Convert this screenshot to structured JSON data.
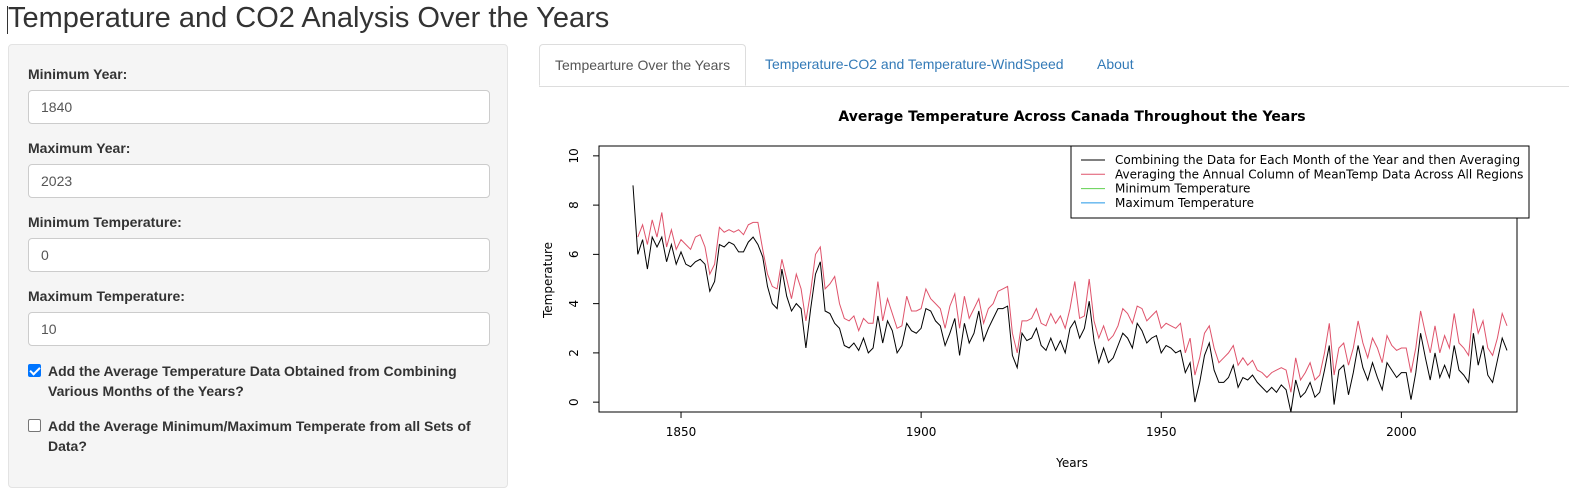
{
  "page": {
    "title": "Temperature and CO2 Analysis Over the Years"
  },
  "sidebar": {
    "min_year": {
      "label": "Minimum Year:",
      "value": "1840"
    },
    "max_year": {
      "label": "Maximum Year:",
      "value": "2023"
    },
    "min_temp": {
      "label": "Minimum Temperature:",
      "value": "0"
    },
    "max_temp": {
      "label": "Maximum Temperature:",
      "value": "10"
    },
    "checkbox_avg": {
      "label": "Add the Average Temperature Data Obtained from Combining Various Months of the Years?",
      "checked": true
    },
    "checkbox_minmax": {
      "label": "Add the Average Minimum/Maximum Temperate from all Sets of Data?",
      "checked": false
    }
  },
  "tabs": [
    {
      "label": "Tempearture Over the Years",
      "active": true
    },
    {
      "label": "Temperature-CO2 and Temperature-WindSpeed",
      "active": false
    },
    {
      "label": "About",
      "active": false
    }
  ],
  "colors": {
    "accent": "#337ab7",
    "checkbox": "#0075ff",
    "series_black": "#000000",
    "series_red": "#DF536B",
    "series_green": "#61D04F",
    "series_blue": "#2297E6"
  },
  "chart_data": {
    "type": "line",
    "title": "Average Temperature Across Canada Throughout the Years",
    "xlabel": "Years",
    "ylabel": "Temperature",
    "xlim": [
      1840,
      2017
    ],
    "ylim": [
      0,
      10
    ],
    "x_ticks": [
      1850,
      1900,
      1950,
      2000
    ],
    "y_ticks": [
      0,
      2,
      4,
      6,
      8,
      10
    ],
    "legend_position": "top-right",
    "legend": [
      {
        "label": "Combining the Data for Each Month of the Year and then Averaging",
        "color": "#000000"
      },
      {
        "label": "Averaging the Annual Column of MeanTemp Data Across All Regions",
        "color": "#DF536B"
      },
      {
        "label": "Minimum Temperature",
        "color": "#61D04F"
      },
      {
        "label": "Maximum Temperature",
        "color": "#2297E6"
      }
    ],
    "series": [
      {
        "name": "Combining the Data for Each Month of the Year and then Averaging",
        "color": "#000000",
        "x_start": 1840,
        "values": [
          8.8,
          6.0,
          6.6,
          5.4,
          6.7,
          6.3,
          6.7,
          5.7,
          6.4,
          5.6,
          6.1,
          5.6,
          5.5,
          5.7,
          5.8,
          5.6,
          4.5,
          4.9,
          6.4,
          6.3,
          6.5,
          6.4,
          6.1,
          6.1,
          6.5,
          6.7,
          6.4,
          5.9,
          4.7,
          4.0,
          3.8,
          5.4,
          4.3,
          3.7,
          4.0,
          3.8,
          2.2,
          3.8,
          5.2,
          5.7,
          3.7,
          3.6,
          3.2,
          3.0,
          2.3,
          2.2,
          2.4,
          2.1,
          2.6,
          2.0,
          2.2,
          3.5,
          2.4,
          3.3,
          2.9,
          2.0,
          2.3,
          3.2,
          2.9,
          2.8,
          3.0,
          3.8,
          3.7,
          3.3,
          3.1,
          2.3,
          2.8,
          3.4,
          1.9,
          3.2,
          2.4,
          2.8,
          3.7,
          2.5,
          3.0,
          3.4,
          3.8,
          3.8,
          3.9,
          1.9,
          1.4,
          2.8,
          2.5,
          2.6,
          3.0,
          2.3,
          2.1,
          2.6,
          2.1,
          2.5,
          2.0,
          3.0,
          3.3,
          2.6,
          3.0,
          4.1,
          2.5,
          1.6,
          2.2,
          1.6,
          1.8,
          2.3,
          2.8,
          2.6,
          2.2,
          3.2,
          2.9,
          2.4,
          2.6,
          2.7,
          2.0,
          2.3,
          2.2,
          2.0,
          2.1,
          1.2,
          1.6,
          0.0,
          0.8,
          1.9,
          2.4,
          1.3,
          0.8,
          0.8,
          1.0,
          1.5,
          0.6,
          1.0,
          0.9,
          1.1,
          0.8,
          0.6,
          0.4,
          0.6,
          0.4,
          0.7,
          0.5,
          -0.4,
          0.9,
          0.2,
          0.4,
          0.8,
          0.2,
          0.4,
          1.3,
          2.3,
          -0.1,
          1.3,
          1.5,
          0.3,
          1.2,
          2.3,
          1.4,
          0.9,
          1.6,
          1.0,
          0.5,
          1.6,
          1.3,
          1.0,
          1.2,
          1.2,
          0.1,
          1.2,
          2.8,
          1.8,
          0.9,
          2.0,
          1.0,
          1.5,
          1.0,
          2.3,
          1.3,
          1.1,
          0.8,
          2.8,
          1.5,
          2.3,
          1.1,
          0.8,
          1.7,
          2.6,
          2.1
        ]
      },
      {
        "name": "Averaging the Annual Column of MeanTemp Data Across All Regions",
        "color": "#DF536B",
        "x_start": 1840,
        "values": [
          null,
          6.7,
          7.2,
          6.4,
          7.4,
          6.7,
          7.7,
          6.3,
          7.0,
          6.2,
          6.6,
          6.4,
          6.2,
          6.7,
          6.8,
          6.3,
          5.2,
          5.6,
          7.1,
          6.9,
          7.0,
          6.9,
          7.0,
          6.8,
          7.2,
          7.3,
          7.3,
          6.2,
          5.2,
          4.7,
          4.6,
          5.8,
          5.0,
          4.2,
          5.2,
          4.6,
          3.3,
          4.5,
          6.0,
          6.3,
          4.6,
          4.8,
          5.1,
          4.0,
          3.4,
          3.3,
          3.5,
          2.9,
          3.4,
          3.2,
          3.2,
          4.9,
          3.3,
          4.2,
          3.6,
          3.0,
          3.1,
          4.3,
          3.7,
          3.7,
          3.8,
          4.6,
          4.2,
          4.0,
          3.8,
          3.0,
          3.9,
          4.4,
          3.0,
          4.3,
          3.4,
          3.8,
          4.2,
          3.2,
          3.8,
          4.0,
          4.5,
          4.6,
          4.7,
          2.8,
          2.0,
          3.3,
          3.3,
          3.4,
          3.8,
          3.2,
          3.1,
          3.6,
          3.2,
          3.5,
          3.0,
          3.8,
          4.9,
          3.4,
          3.5,
          5.0,
          3.3,
          2.6,
          3.1,
          2.5,
          2.7,
          3.1,
          3.8,
          3.6,
          3.2,
          3.9,
          3.8,
          3.3,
          3.5,
          3.7,
          3.0,
          3.2,
          3.1,
          3.0,
          3.2,
          2.0,
          2.6,
          1.1,
          1.8,
          2.8,
          3.1,
          2.2,
          1.6,
          1.8,
          2.0,
          2.3,
          1.5,
          1.8,
          1.5,
          1.7,
          1.3,
          1.2,
          1.0,
          1.2,
          1.3,
          1.4,
          1.3,
          0.4,
          1.8,
          0.9,
          1.2,
          1.6,
          0.9,
          1.1,
          2.0,
          3.2,
          1.1,
          2.2,
          2.4,
          1.5,
          2.2,
          3.3,
          2.4,
          1.8,
          2.6,
          2.2,
          1.6,
          2.7,
          2.3,
          2.1,
          2.2,
          2.2,
          1.2,
          2.2,
          3.7,
          2.8,
          2.0,
          3.1,
          2.0,
          2.7,
          2.2,
          3.6,
          2.4,
          2.2,
          1.9,
          3.8,
          2.8,
          3.3,
          2.2,
          1.9,
          2.6,
          3.6,
          3.1
        ]
      }
    ]
  }
}
